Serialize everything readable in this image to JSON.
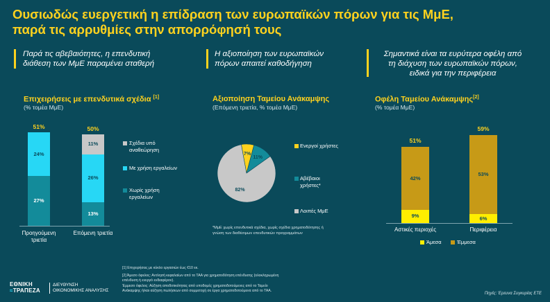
{
  "header": {
    "title_line1": "Ουσιωδώς ευεργετική η επίδραση των ευρωπαϊκών πόρων για τις ΜμΕ,",
    "title_line2": "παρά τις αρρυθμίες στην απορρόφησή τους"
  },
  "quotes": {
    "q1_line1": "Παρά τις αβεβαιότητες, η επενδυτική",
    "q1_line2": "διάθεση των ΜμΕ παραμένει σταθερή",
    "q2_line1": "Η αξιοποίηση των ευρωπαϊκών",
    "q2_line2": "πόρων απαιτεί καθοδήγηση",
    "q3_line1": "Σημαντικά είναι τα ευρύτερα οφέλη από",
    "q3_line2": "τη  διάχυση των ευρωπαϊκών πόρων,",
    "q3_line3": "ειδικά για την περιφέρεια"
  },
  "colors": {
    "background": "#0a4a5a",
    "accent_yellow": "#ffd21e",
    "cyan": "#27d7f5",
    "teal": "#138b9a",
    "grey": "#c8c8c8",
    "gold": "#c79a17",
    "bright_yellow": "#ffee00"
  },
  "chart_data": [
    {
      "type": "bar",
      "stacked": true,
      "title": "Επιχειρήσεις με επενδυτικά σχέδια",
      "title_sup": "[1]",
      "subtitle": "(% τομέα ΜμΕ)",
      "categories": [
        "Προηγούμενη τριετία",
        "Επόμενη τριετία"
      ],
      "category_lines": [
        [
          "Προηγούμενη",
          "τριετία"
        ],
        [
          "Επόμενη τριετία"
        ]
      ],
      "series": [
        {
          "name": "Χωρίς χρήση εργαλείων",
          "values": [
            27,
            13
          ]
        },
        {
          "name": "Με χρήση εργαλείων",
          "values": [
            24,
            26
          ]
        },
        {
          "name": "Σχέδια υπό αναθεώρηση",
          "values": [
            0,
            11
          ]
        }
      ],
      "legend_lines": {
        "Σχέδια υπό αναθεώρηση": [
          "Σχέδια υπό",
          "αναθεώρηση"
        ],
        "Με χρήση εργαλείων": [
          "Με χρήση εργαλείων"
        ],
        "Χωρίς χρήση εργαλείων": [
          "Χωρίς χρήση",
          "εργαλείων"
        ]
      },
      "totals": [
        "51%",
        "50%"
      ],
      "legend": "right",
      "ylim": [
        0,
        60
      ]
    },
    {
      "type": "pie",
      "title": "Αξιοποίηση Ταμείου Ανάκαμψης",
      "subtitle": "(Επόμενη τριετία, % τομέα ΜμΕ)",
      "slices": [
        {
          "name": "Ενεργοί χρήστες",
          "value": 7,
          "label": "7%"
        },
        {
          "name": "Αβέβαιοι χρήστες*",
          "value": 11,
          "label": "11%"
        },
        {
          "name": "Λοιπές ΜμΕ",
          "value": 82,
          "label": "82%"
        }
      ],
      "legend_lines": {
        "Ενεργοί χρήστες": [
          "Ενεργοί χρήστες"
        ],
        "Αβέβαιοι χρήστες*": [
          "Αβέβαιοι",
          "χρήστες*"
        ],
        "Λοιπές ΜμΕ": [
          "Λοιπές ΜμΕ"
        ]
      },
      "note_line1": "*ΜμΕ χωρίς επενδυτικά σχέδια, χωρίς σχέδια χρηματοδότησης ή",
      "note_line2": "γνώση των  διαθέσιμων επενδυτικών προγραμμάτων",
      "legend": "right"
    },
    {
      "type": "bar",
      "stacked": true,
      "title": "Οφέλη Ταμείου Ανάκαμψης",
      "title_sup": "[2]",
      "subtitle": "(% τομέα ΜμΕ)",
      "categories": [
        "Αστικές περιοχές",
        "Περιφέρεια"
      ],
      "series": [
        {
          "name": "Άμεσα",
          "values": [
            9,
            6
          ]
        },
        {
          "name": "Έμμεσα",
          "values": [
            42,
            53
          ]
        }
      ],
      "totals": [
        "51%",
        "59%"
      ],
      "legend": "bottom",
      "ylim": [
        0,
        60
      ]
    }
  ],
  "footnotes": {
    "f1": "[1]  Επιχειρήσεις με κύκλο εργασιών έως €10 εκ.",
    "f2_line1": "[2] Άμεσο όφελος: Αντλησή κεφαλαίων από το ΤΑΑ για χρηματοδότηση επένδυσης (ολοκληρωμένη",
    "f2_line2": "επένδυση ή ενεργό ενδιαφέρον).",
    "f2_line3": "Έμμεσο όφελος: Αύξηση αποδοτικότητας από υποδομές χρηματοδοτούμενες από το Ταμείο",
    "f2_line4": "Ανάκαμψης ή/και αύξηση πωλήσεων από συμμετοχή σε έργα χρηματοδοτούμενα από το ΤΑΑ."
  },
  "source": "Πηγές: Έρευνα Συγκυρίας ΕΤΕ",
  "logo": {
    "line1": "ΕΘΝΙΚΗ",
    "line2": "ΤΡΑΠΕΖΑ",
    "dept_line1": "ΔΙΕΥΘΥΝΣΗ",
    "dept_line2": "ΟΙΚΟΝΟΜΙΚΗΣ ΑΝΑΛΥΣΗΣ"
  }
}
